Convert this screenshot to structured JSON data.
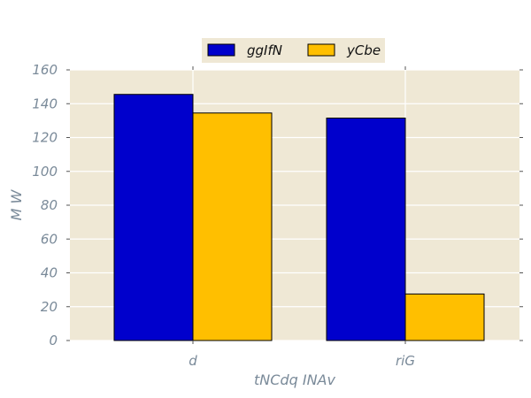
{
  "chart_data": {
    "type": "bar",
    "title": "",
    "xlabel": "tNCdq INAv",
    "ylabel": "M  W",
    "categories": [
      "d",
      "riG"
    ],
    "series": [
      {
        "name": "ggIfN",
        "values": [
          145.5,
          131.5
        ],
        "color": "#0000cc"
      },
      {
        "name": "yCbe",
        "values": [
          134.5,
          27.5
        ],
        "color": "#ffbf00"
      }
    ],
    "ylim": [
      0,
      160
    ],
    "yticks": [
      0,
      20,
      40,
      60,
      80,
      100,
      120,
      140,
      160
    ],
    "grid": true,
    "legend_position": "top-center"
  },
  "style": {
    "plot_background": "#efe8d5",
    "grid_color": "#ffffff",
    "text_color": "#7a8a99",
    "bar_edge": "#000000"
  }
}
